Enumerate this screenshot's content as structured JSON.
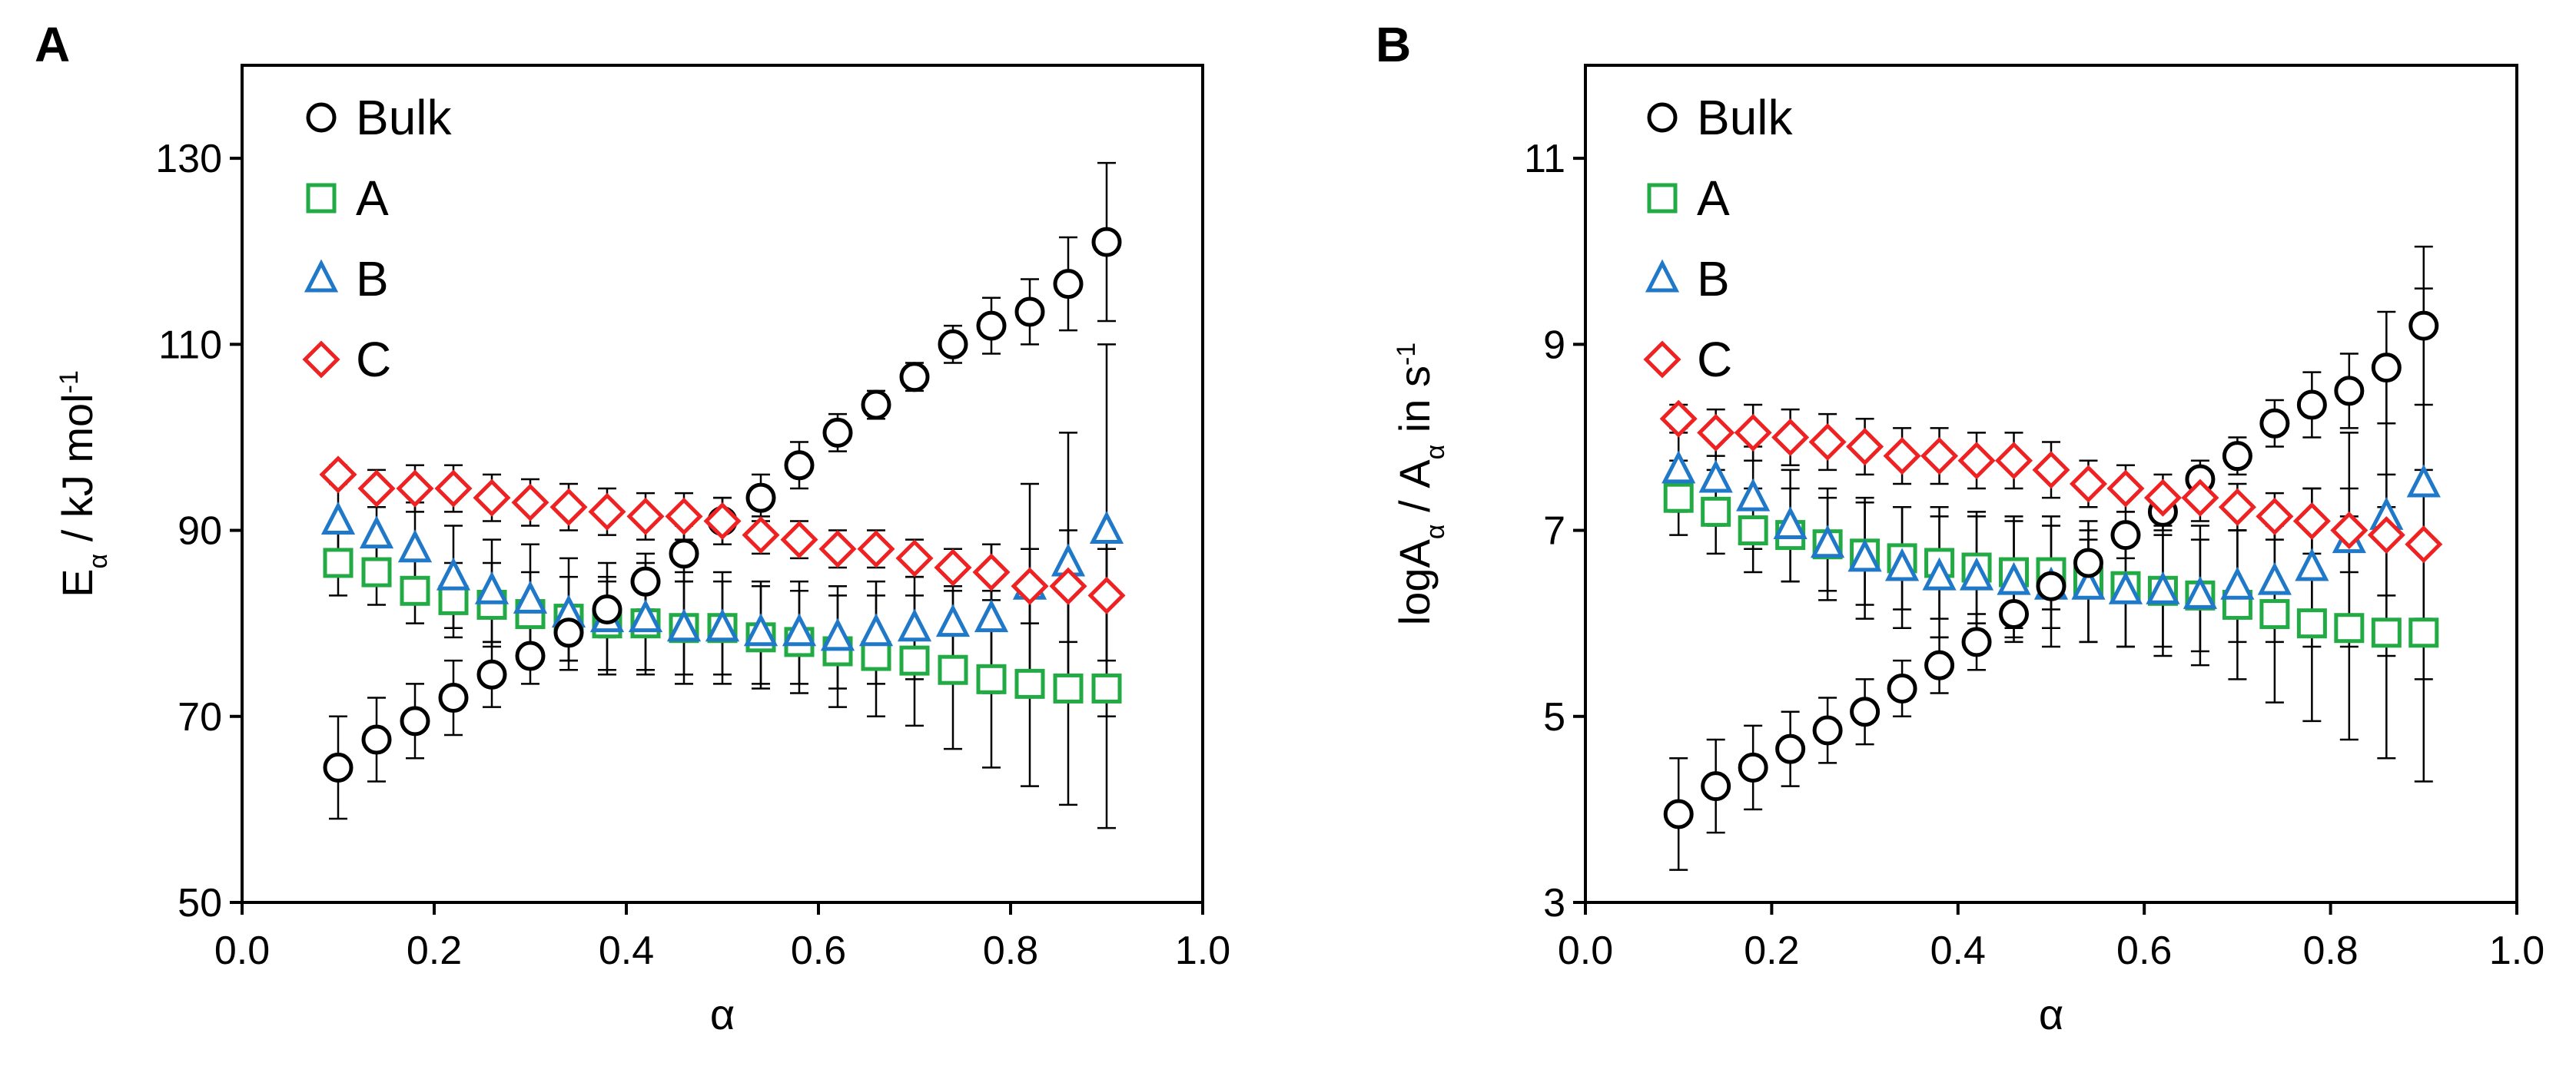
{
  "chart_data": [
    {
      "panel": "A",
      "type": "scatter",
      "xlabel": "α",
      "ylabel": {
        "base": "E",
        "sub": "α",
        "rest": " / kJ mol",
        "sup": "-1"
      },
      "xlim": [
        0.0,
        1.0
      ],
      "ylim": [
        50,
        140
      ],
      "xticks": [
        "0.0",
        "0.2",
        "0.4",
        "0.6",
        "0.8",
        "1.0"
      ],
      "yticks": [
        "50",
        "70",
        "90",
        "110",
        "130"
      ],
      "x": [
        0.1,
        0.14,
        0.18,
        0.22,
        0.26,
        0.3,
        0.34,
        0.38,
        0.42,
        0.46,
        0.5,
        0.54,
        0.58,
        0.62,
        0.66,
        0.7,
        0.74,
        0.78,
        0.82,
        0.86,
        0.9
      ],
      "legend": [
        "Bulk",
        "A",
        "B",
        "C"
      ],
      "series": [
        {
          "name": "Bulk",
          "marker": "circle",
          "color": "#000000",
          "values": [
            64.5,
            67.5,
            69.5,
            72.0,
            74.5,
            76.5,
            79.0,
            81.5,
            84.5,
            87.5,
            91.0,
            93.5,
            97.0,
            100.5,
            103.5,
            106.5,
            110.0,
            112.0,
            113.5,
            116.5,
            121.0
          ],
          "errors": [
            5.5,
            4.5,
            4.0,
            4.0,
            3.5,
            3.0,
            3.0,
            3.0,
            3.0,
            3.0,
            2.5,
            2.5,
            2.5,
            2.0,
            1.5,
            1.5,
            2.0,
            3.0,
            3.5,
            5.0,
            8.5
          ]
        },
        {
          "name": "A",
          "marker": "square",
          "color": "#22aa44",
          "values": [
            86.5,
            85.5,
            83.5,
            82.5,
            82.0,
            81.0,
            80.5,
            80.0,
            80.0,
            79.5,
            79.5,
            78.5,
            78.0,
            77.0,
            76.5,
            76.0,
            75.0,
            74.0,
            73.5,
            73.0,
            73.0
          ],
          "errors": [
            3.5,
            3.5,
            3.5,
            4.0,
            4.5,
            4.5,
            4.5,
            5.0,
            5.0,
            5.0,
            5.0,
            5.5,
            5.5,
            6.0,
            6.5,
            7.0,
            8.5,
            9.5,
            11.0,
            12.5,
            15.0
          ]
        },
        {
          "name": "B",
          "marker": "triangle",
          "color": "#1f78c8",
          "values": [
            91.0,
            89.5,
            88.0,
            85.0,
            83.5,
            82.5,
            81.0,
            80.5,
            80.5,
            79.5,
            79.5,
            79.0,
            79.0,
            78.5,
            79.0,
            79.5,
            80.0,
            80.5,
            84.0,
            86.5,
            90.0
          ],
          "errors": [
            4.0,
            4.5,
            5.0,
            5.5,
            5.5,
            6.0,
            6.0,
            6.0,
            6.0,
            6.0,
            6.0,
            5.5,
            5.5,
            5.5,
            5.5,
            5.5,
            6.0,
            8.0,
            11.0,
            14.0,
            20.0
          ]
        },
        {
          "name": "C",
          "marker": "diamond",
          "color": "#ee2222",
          "values": [
            96.0,
            94.5,
            94.5,
            94.5,
            93.5,
            93.0,
            92.5,
            92.0,
            91.5,
            91.5,
            91.0,
            89.5,
            89.0,
            88.0,
            88.0,
            87.0,
            86.0,
            85.5,
            84.0,
            84.0,
            83.0
          ],
          "errors": [
            1.0,
            2.0,
            2.5,
            2.5,
            2.5,
            2.5,
            2.5,
            2.5,
            2.5,
            2.5,
            2.5,
            2.0,
            2.0,
            2.0,
            2.0,
            2.0,
            2.0,
            3.0,
            4.0,
            6.0,
            7.0
          ]
        }
      ]
    },
    {
      "panel": "B",
      "type": "scatter",
      "xlabel": "α",
      "ylabel": {
        "base": "logA",
        "sub": "α",
        "mid": "  /  A",
        "sub2": "α",
        "rest": " in s",
        "sup": "-1"
      },
      "xlim": [
        0.0,
        1.0
      ],
      "ylim": [
        3,
        12
      ],
      "xticks": [
        "0.0",
        "0.2",
        "0.4",
        "0.6",
        "0.8",
        "1.0"
      ],
      "yticks": [
        "3",
        "5",
        "7",
        "9",
        "11"
      ],
      "x": [
        0.1,
        0.14,
        0.18,
        0.22,
        0.26,
        0.3,
        0.34,
        0.38,
        0.42,
        0.46,
        0.5,
        0.54,
        0.58,
        0.62,
        0.66,
        0.7,
        0.74,
        0.78,
        0.82,
        0.86,
        0.9
      ],
      "legend": [
        "Bulk",
        "A",
        "B",
        "C"
      ],
      "series": [
        {
          "name": "Bulk",
          "marker": "circle",
          "color": "#000000",
          "values": [
            3.95,
            4.25,
            4.45,
            4.65,
            4.85,
            5.05,
            5.3,
            5.55,
            5.8,
            6.1,
            6.4,
            6.65,
            6.95,
            7.2,
            7.55,
            7.8,
            8.15,
            8.35,
            8.5,
            8.75,
            9.2
          ],
          "errors": [
            0.6,
            0.5,
            0.45,
            0.4,
            0.35,
            0.35,
            0.3,
            0.3,
            0.3,
            0.25,
            0.25,
            0.25,
            0.25,
            0.2,
            0.2,
            0.2,
            0.25,
            0.35,
            0.4,
            0.6,
            0.85
          ]
        },
        {
          "name": "A",
          "marker": "square",
          "color": "#22aa44",
          "values": [
            7.35,
            7.2,
            7.0,
            6.95,
            6.85,
            6.75,
            6.7,
            6.65,
            6.6,
            6.55,
            6.55,
            6.45,
            6.4,
            6.35,
            6.3,
            6.2,
            6.1,
            6.0,
            5.95,
            5.9,
            5.9
          ],
          "errors": [
            0.4,
            0.45,
            0.45,
            0.5,
            0.5,
            0.55,
            0.55,
            0.6,
            0.6,
            0.6,
            0.6,
            0.65,
            0.65,
            0.7,
            0.75,
            0.8,
            0.95,
            1.05,
            1.2,
            1.35,
            1.6
          ]
        },
        {
          "name": "B",
          "marker": "triangle",
          "color": "#1f78c8",
          "values": [
            7.65,
            7.55,
            7.35,
            7.05,
            6.85,
            6.7,
            6.6,
            6.5,
            6.5,
            6.45,
            6.4,
            6.4,
            6.35,
            6.35,
            6.3,
            6.4,
            6.45,
            6.6,
            6.9,
            7.15,
            7.5
          ],
          "errors": [
            0.45,
            0.5,
            0.55,
            0.6,
            0.6,
            0.65,
            0.65,
            0.65,
            0.65,
            0.65,
            0.65,
            0.6,
            0.6,
            0.6,
            0.6,
            0.6,
            0.65,
            0.85,
            1.15,
            1.5,
            2.1
          ]
        },
        {
          "name": "C",
          "marker": "diamond",
          "color": "#ee2222",
          "values": [
            8.2,
            8.05,
            8.05,
            8.0,
            7.95,
            7.9,
            7.8,
            7.8,
            7.75,
            7.75,
            7.65,
            7.5,
            7.45,
            7.35,
            7.35,
            7.25,
            7.15,
            7.1,
            7.0,
            6.95,
            6.85
          ],
          "errors": [
            0.15,
            0.25,
            0.3,
            0.3,
            0.3,
            0.3,
            0.3,
            0.3,
            0.3,
            0.3,
            0.3,
            0.25,
            0.25,
            0.25,
            0.25,
            0.25,
            0.25,
            0.35,
            0.45,
            0.65,
            0.8
          ]
        }
      ]
    }
  ]
}
